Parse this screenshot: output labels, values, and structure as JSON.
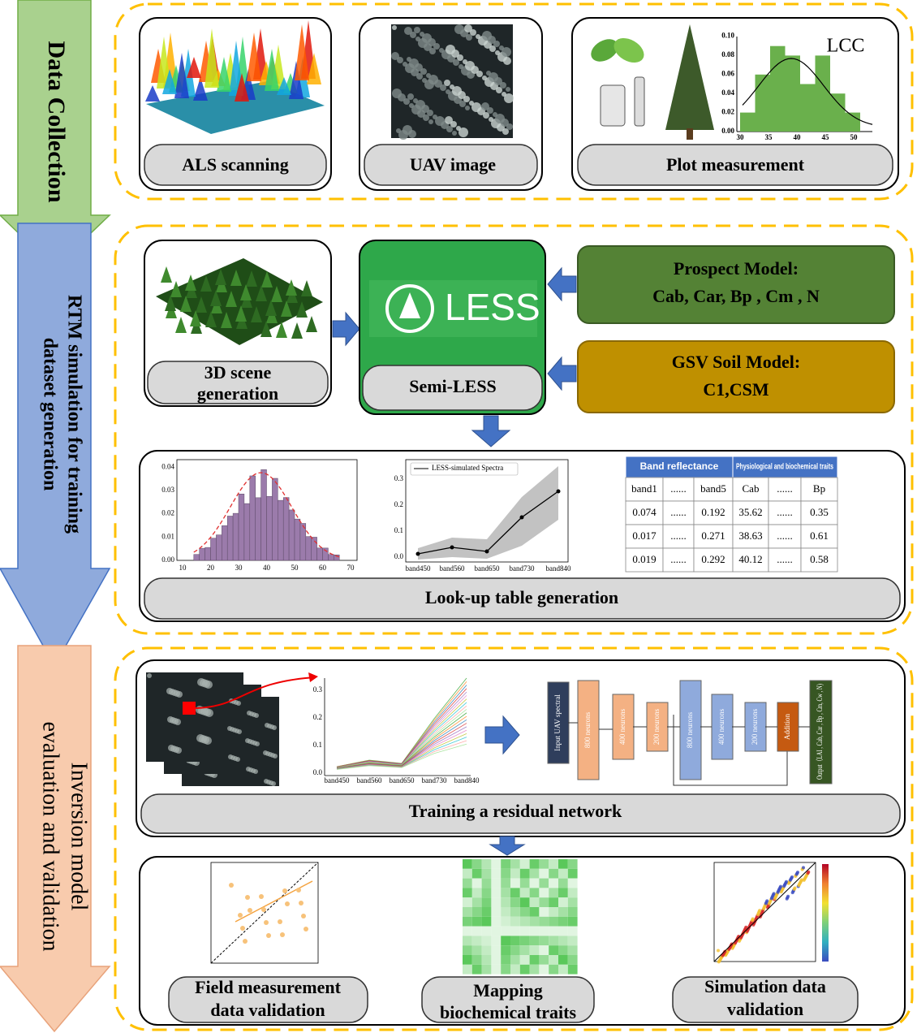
{
  "arrows": [
    {
      "lines": [
        "Data Collection"
      ]
    },
    {
      "lines": [
        "RTM simulation for training",
        "dataset generation"
      ]
    },
    {
      "lines": [
        "Inversion model",
        "evaluation and validation"
      ]
    }
  ],
  "data_collection": {
    "als": "ALS scanning",
    "uav": "UAV image",
    "plot": "Plot measurement",
    "lcc_chart": {
      "title": "LCC",
      "yticks": [
        "0.00",
        "0.02",
        "0.04",
        "0.06",
        "0.08",
        "0.10"
      ],
      "xticks": [
        30,
        35,
        40,
        45,
        50
      ]
    }
  },
  "rtm": {
    "scene": [
      "3D scene",
      "generation"
    ],
    "less_logo": "LESS",
    "semi_less": "Semi-LESS",
    "prospect": [
      "Prospect Model:",
      "Cab, Car, Bp , Cm , N"
    ],
    "gsv": [
      "GSV Soil Model:",
      "C1,CSM"
    ]
  },
  "lut": {
    "histogram": {
      "yticks": [
        "0.00",
        "0.01",
        "0.02",
        "0.03",
        "0.04"
      ],
      "xticks": [
        10,
        20,
        30,
        40,
        50,
        60,
        70
      ]
    },
    "spectra": {
      "legend": "LESS-simulated Spectra",
      "yticks": [
        "0.0",
        "0.1",
        "0.2",
        "0.3"
      ],
      "xticks": [
        "band450",
        "band560",
        "band650",
        "band730",
        "band840"
      ]
    },
    "table": {
      "group_headers": [
        "Band reflectance",
        "Physiological and biochemical traits"
      ],
      "columns": [
        "band1",
        "......",
        "band5",
        "Cab",
        "......",
        "Bp"
      ],
      "rows": [
        [
          "0.074",
          "......",
          "0.192",
          "35.62",
          "......",
          "0.35"
        ],
        [
          "0.017",
          "......",
          "0.271",
          "38.63",
          "......",
          "0.61"
        ],
        [
          "0.019",
          "......",
          "0.292",
          "40.12",
          "......",
          "0.58"
        ]
      ]
    },
    "label": "Look-up table generation"
  },
  "inversion": {
    "spectra": {
      "yticks": [
        "0.0",
        "0.1",
        "0.2",
        "0.3"
      ],
      "xticks": [
        "band450",
        "band560",
        "band650",
        "band730",
        "band840"
      ]
    },
    "network": {
      "input": "Input UAV spectral",
      "blocks": [
        "800 neurons",
        "400 neurons",
        "200 neurons",
        "800 neurons",
        "400 neurons",
        "200 neurons"
      ],
      "addition": "Addition",
      "output": "Output（LAI , Cab, Car , Bp , Cm, Cw , N)"
    },
    "label": "Training a residual network"
  },
  "validation": {
    "field": [
      "Field measurement",
      "data validation"
    ],
    "mapping": [
      "Mapping",
      "biochemical traits"
    ],
    "simulation": [
      "Simulation data",
      "validation"
    ]
  }
}
